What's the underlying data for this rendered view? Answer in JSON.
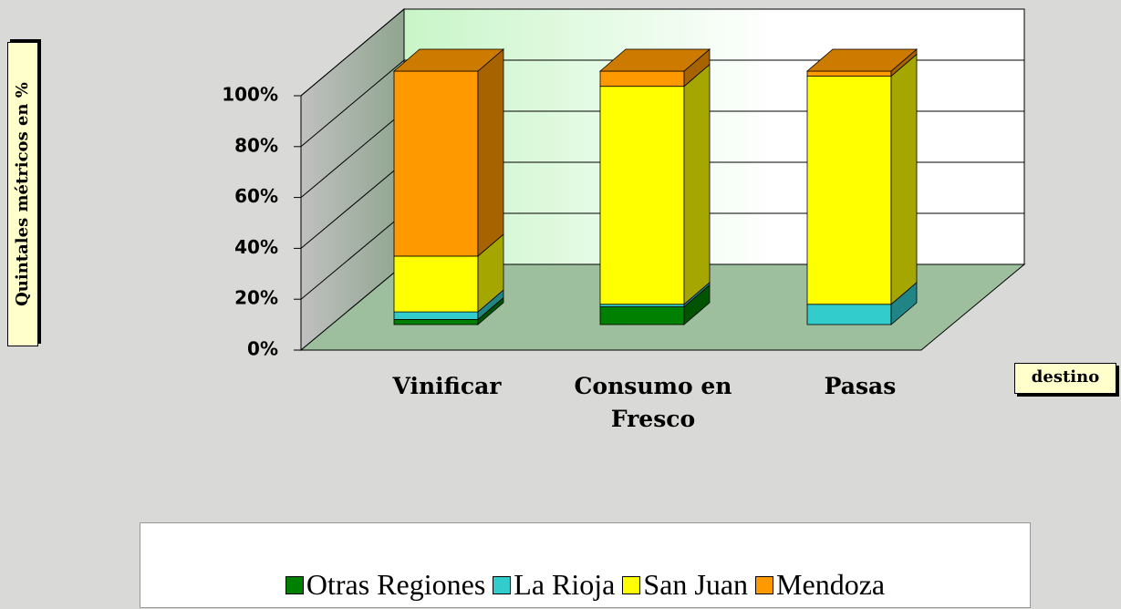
{
  "chart_data": {
    "type": "bar",
    "stacked": true,
    "y_label": "Quintales métricos en %",
    "x_label": "destino",
    "categories": [
      "Vinificar",
      "Consumo en Fresco",
      "Pasas"
    ],
    "series": [
      {
        "name": "Otras Regiones",
        "color": "#008000",
        "values": [
          2,
          7,
          0
        ]
      },
      {
        "name": "La Rioja",
        "color": "#33cccc",
        "values": [
          3,
          1,
          8
        ]
      },
      {
        "name": "San Juan",
        "color": "#ffff00",
        "values": [
          22,
          86,
          90
        ]
      },
      {
        "name": "Mendoza",
        "color": "#ff9900",
        "values": [
          73,
          6,
          2
        ]
      }
    ],
    "ylim": [
      0,
      100
    ],
    "yticks": [
      {
        "value": 0,
        "label": "0%"
      },
      {
        "value": 20,
        "label": "20%"
      },
      {
        "value": 40,
        "label": "40%"
      },
      {
        "value": 60,
        "label": "60%"
      },
      {
        "value": 80,
        "label": "80%"
      },
      {
        "value": 100,
        "label": "100%"
      }
    ],
    "grid": true
  }
}
